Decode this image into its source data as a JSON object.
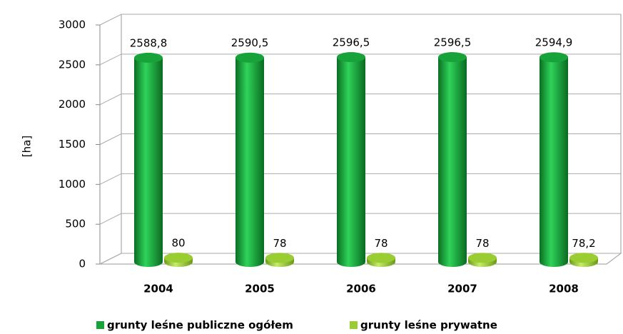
{
  "chart_data": {
    "type": "bar3d",
    "y_label": "[ha]",
    "categories": [
      "2004",
      "2005",
      "2006",
      "2007",
      "2008"
    ],
    "series": [
      {
        "name": "grunty leśne publiczne ogółem",
        "color": "#18a33a",
        "values": [
          2588.8,
          2590.5,
          2596.5,
          2596.5,
          2594.9
        ],
        "value_labels": [
          "2588,8",
          "2590,5",
          "2596,5",
          "2596,5",
          "2594,9"
        ]
      },
      {
        "name": "grunty leśne prywatne",
        "color": "#9acd32",
        "values": [
          80,
          78,
          78,
          78,
          78.2
        ],
        "value_labels": [
          "80",
          "78",
          "78",
          "78",
          "78,2"
        ]
      }
    ],
    "ylim": [
      0,
      3000
    ],
    "yticks": [
      0,
      500,
      1000,
      1500,
      2000,
      2500,
      3000
    ],
    "grid": true,
    "legend": "bottom"
  }
}
